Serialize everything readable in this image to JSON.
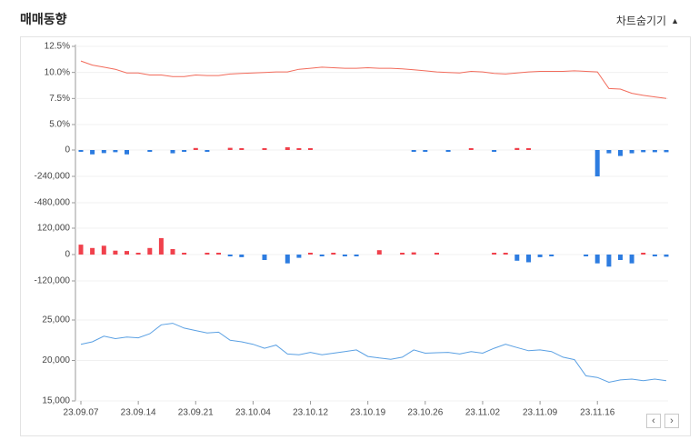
{
  "header": {
    "title": "매매동향",
    "toggle_label": "차트숨기기",
    "toggle_icon": "triangle-up-icon"
  },
  "nav": {
    "prev_icon": "chevron-left-icon",
    "next_icon": "chevron-right-icon"
  },
  "x_ticks": [
    "23.09.07",
    "23.09.14",
    "23.09.21",
    "23.10.04",
    "23.10.12",
    "23.10.19",
    "23.10.26",
    "23.11.02",
    "23.11.09",
    "23.11.16"
  ],
  "colors": {
    "up": "#f0414c",
    "down": "#2d7ce0",
    "line_red": "#f26b5b",
    "line_blue": "#5aa0e3"
  },
  "chart_data": [
    {
      "type": "line",
      "name": "rate",
      "yticks": [
        "12.5%",
        "10.0%",
        "7.5%",
        "5.0%"
      ],
      "ylim": [
        5.0,
        12.5
      ],
      "values": [
        11.1,
        10.7,
        10.5,
        10.3,
        9.95,
        9.95,
        9.75,
        9.75,
        9.6,
        9.6,
        9.75,
        9.7,
        9.7,
        9.85,
        9.9,
        9.95,
        10.0,
        10.05,
        10.05,
        10.3,
        10.4,
        10.5,
        10.45,
        10.4,
        10.4,
        10.45,
        10.4,
        10.4,
        10.35,
        10.25,
        10.15,
        10.05,
        10.0,
        9.95,
        10.1,
        10.05,
        9.9,
        9.85,
        9.95,
        10.05,
        10.1,
        10.1,
        10.1,
        10.15,
        10.1,
        10.05,
        8.45,
        8.4,
        8.0,
        7.8,
        7.65,
        7.5
      ]
    },
    {
      "type": "bar",
      "name": "flow1",
      "yticks": [
        "0",
        "-240,000",
        "-480,000"
      ],
      "ylim": [
        -480000,
        0
      ],
      "values": [
        -10000,
        -40000,
        -28000,
        -20000,
        -40000,
        0,
        -15000,
        0,
        -30000,
        -15000,
        18000,
        -15000,
        0,
        20000,
        8000,
        0,
        6000,
        0,
        25000,
        14000,
        12000,
        0,
        0,
        0,
        0,
        0,
        0,
        0,
        0,
        -15000,
        -10000,
        0,
        -8000,
        0,
        5000,
        0,
        -15000,
        0,
        18000,
        12000,
        0,
        0,
        0,
        0,
        0,
        -240000,
        -30000,
        -55000,
        -30000,
        -20000,
        -20000,
        -20000
      ]
    },
    {
      "type": "bar",
      "name": "flow2",
      "yticks": [
        "120,000",
        "0",
        "-120,000"
      ],
      "ylim": [
        -120000,
        120000
      ],
      "values": [
        45000,
        30000,
        40000,
        18000,
        16000,
        8000,
        30000,
        75000,
        25000,
        8000,
        0,
        4000,
        6000,
        -6000,
        -12000,
        0,
        -25000,
        0,
        -40000,
        -15000,
        8000,
        -8000,
        3000,
        -5000,
        -6000,
        0,
        20000,
        0,
        6000,
        10000,
        0,
        4000,
        0,
        0,
        0,
        0,
        6000,
        5000,
        -28000,
        -35000,
        -12000,
        -5000,
        0,
        0,
        -4000,
        -40000,
        -55000,
        -25000,
        -40000,
        8000,
        -5000,
        -10000
      ]
    },
    {
      "type": "line",
      "name": "price",
      "yticks": [
        "25,000",
        "20,000",
        "15,000"
      ],
      "ylim": [
        15000,
        25000
      ],
      "values": [
        22000,
        22300,
        23000,
        22700,
        22900,
        22800,
        23300,
        24400,
        24600,
        24000,
        23700,
        23400,
        23500,
        22500,
        22300,
        22000,
        21500,
        21900,
        20800,
        20700,
        21000,
        20700,
        20900,
        21100,
        21300,
        20500,
        20300,
        20150,
        20400,
        21300,
        20900,
        20950,
        21000,
        20800,
        21100,
        20900,
        21500,
        22000,
        21600,
        21200,
        21300,
        21100,
        20400,
        20100,
        18100,
        17900,
        17300,
        17600,
        17700,
        17500,
        17700,
        17500
      ]
    }
  ]
}
